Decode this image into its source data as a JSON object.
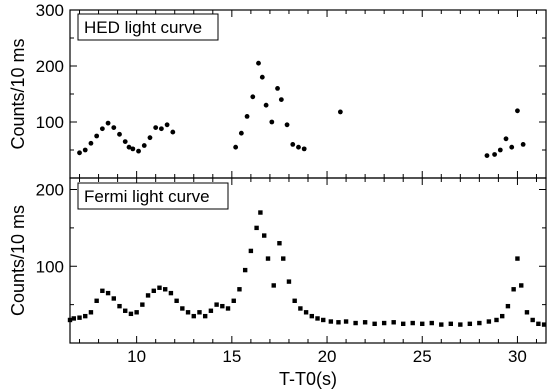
{
  "chart_data": [
    {
      "type": "scatter",
      "panel": "top",
      "title": "",
      "legend": {
        "label": "HED light curve",
        "placement": "top-left"
      },
      "xlabel": "",
      "ylabel": "Counts/10 ms",
      "xlim": [
        6.5,
        31.5
      ],
      "ylim": [
        0,
        300
      ],
      "xticks": [
        10,
        15,
        20,
        25,
        30
      ],
      "yticks": [
        100,
        200,
        300
      ],
      "marker": "circle",
      "series": [
        {
          "values": [
            [
              7.0,
              45
            ],
            [
              7.3,
              50
            ],
            [
              7.6,
              62
            ],
            [
              7.9,
              75
            ],
            [
              8.2,
              88
            ],
            [
              8.5,
              98
            ],
            [
              8.8,
              90
            ],
            [
              9.1,
              78
            ],
            [
              9.4,
              65
            ],
            [
              9.6,
              55
            ],
            [
              9.8,
              52
            ],
            [
              10.1,
              48
            ],
            [
              10.4,
              58
            ],
            [
              10.7,
              72
            ],
            [
              11.0,
              90
            ],
            [
              11.3,
              88
            ],
            [
              11.6,
              95
            ],
            [
              11.9,
              82
            ],
            [
              15.2,
              55
            ],
            [
              15.5,
              80
            ],
            [
              15.8,
              110
            ],
            [
              16.1,
              145
            ],
            [
              16.4,
              205
            ],
            [
              16.6,
              180
            ],
            [
              16.8,
              130
            ],
            [
              17.1,
              100
            ],
            [
              17.4,
              160
            ],
            [
              17.6,
              140
            ],
            [
              17.9,
              95
            ],
            [
              18.2,
              60
            ],
            [
              18.5,
              55
            ],
            [
              18.8,
              52
            ],
            [
              20.7,
              118
            ],
            [
              28.4,
              40
            ],
            [
              28.8,
              42
            ],
            [
              29.1,
              50
            ],
            [
              29.4,
              70
            ],
            [
              29.7,
              55
            ],
            [
              30.0,
              120
            ],
            [
              30.3,
              60
            ]
          ]
        }
      ]
    },
    {
      "type": "scatter",
      "panel": "bottom",
      "title": "",
      "legend": {
        "label": "Fermi light curve",
        "placement": "top-left"
      },
      "xlabel": "T-T0(s)",
      "ylabel": "Counts/10 ms",
      "xlim": [
        6.5,
        31.5
      ],
      "ylim": [
        0,
        215
      ],
      "xticks": [
        10,
        15,
        20,
        25,
        30
      ],
      "yticks": [
        100,
        200
      ],
      "marker": "square",
      "series": [
        {
          "values": [
            [
              6.5,
              30
            ],
            [
              6.7,
              32
            ],
            [
              7.0,
              33
            ],
            [
              7.3,
              35
            ],
            [
              7.6,
              40
            ],
            [
              7.9,
              55
            ],
            [
              8.2,
              68
            ],
            [
              8.5,
              65
            ],
            [
              8.8,
              58
            ],
            [
              9.1,
              48
            ],
            [
              9.4,
              42
            ],
            [
              9.7,
              38
            ],
            [
              10.0,
              40
            ],
            [
              10.3,
              50
            ],
            [
              10.6,
              62
            ],
            [
              10.9,
              68
            ],
            [
              11.2,
              72
            ],
            [
              11.5,
              70
            ],
            [
              11.8,
              65
            ],
            [
              12.1,
              55
            ],
            [
              12.4,
              45
            ],
            [
              12.7,
              40
            ],
            [
              13.0,
              35
            ],
            [
              13.3,
              40
            ],
            [
              13.6,
              35
            ],
            [
              13.9,
              42
            ],
            [
              14.2,
              50
            ],
            [
              14.5,
              48
            ],
            [
              14.8,
              45
            ],
            [
              15.1,
              55
            ],
            [
              15.4,
              70
            ],
            [
              15.7,
              95
            ],
            [
              16.0,
              120
            ],
            [
              16.3,
              150
            ],
            [
              16.5,
              170
            ],
            [
              16.7,
              140
            ],
            [
              16.9,
              110
            ],
            [
              17.2,
              75
            ],
            [
              17.5,
              130
            ],
            [
              17.7,
              110
            ],
            [
              18.0,
              80
            ],
            [
              18.3,
              55
            ],
            [
              18.6,
              45
            ],
            [
              18.9,
              40
            ],
            [
              19.2,
              35
            ],
            [
              19.5,
              32
            ],
            [
              19.8,
              30
            ],
            [
              20.2,
              28
            ],
            [
              20.6,
              27
            ],
            [
              21.0,
              28
            ],
            [
              21.5,
              26
            ],
            [
              22.0,
              27
            ],
            [
              22.5,
              25
            ],
            [
              23.0,
              26
            ],
            [
              23.5,
              27
            ],
            [
              24.0,
              25
            ],
            [
              24.5,
              26
            ],
            [
              25.0,
              25
            ],
            [
              25.5,
              26
            ],
            [
              26.0,
              24
            ],
            [
              26.5,
              25
            ],
            [
              27.0,
              24
            ],
            [
              27.5,
              25
            ],
            [
              28.0,
              26
            ],
            [
              28.5,
              28
            ],
            [
              28.9,
              30
            ],
            [
              29.2,
              35
            ],
            [
              29.5,
              48
            ],
            [
              29.8,
              70
            ],
            [
              30.0,
              110
            ],
            [
              30.2,
              75
            ],
            [
              30.5,
              40
            ],
            [
              30.8,
              30
            ],
            [
              31.1,
              25
            ],
            [
              31.4,
              24
            ]
          ]
        }
      ]
    }
  ]
}
